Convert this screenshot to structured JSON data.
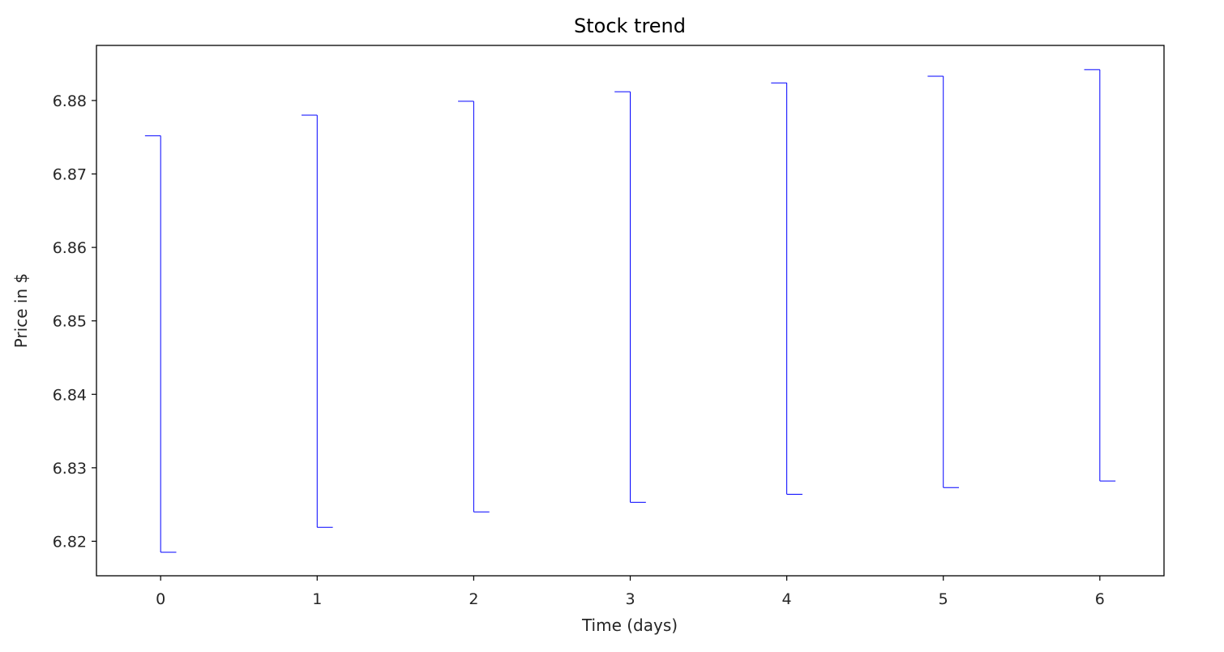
{
  "chart_data": {
    "type": "ohlc",
    "title": "Stock trend",
    "xlabel": "Time (days)",
    "ylabel": "Price in $",
    "x": [
      0,
      1,
      2,
      3,
      4,
      5,
      6
    ],
    "series": [
      {
        "open": [
          6.8752,
          6.878,
          6.8799,
          6.8812,
          6.8824,
          6.8833,
          6.8842
        ],
        "high": [
          6.8752,
          6.878,
          6.8799,
          6.8812,
          6.8824,
          6.8833,
          6.8842
        ],
        "low": [
          6.8185,
          6.8219,
          6.824,
          6.8253,
          6.8264,
          6.8273,
          6.8282
        ],
        "close": [
          6.8185,
          6.8219,
          6.824,
          6.8253,
          6.8264,
          6.8273,
          6.8282
        ]
      }
    ],
    "xticks": [
      0,
      1,
      2,
      3,
      4,
      5,
      6
    ],
    "yticks": [
      "6.82",
      "6.83",
      "6.84",
      "6.85",
      "6.86",
      "6.87",
      "6.88"
    ],
    "xlim": [
      -0.41,
      6.41
    ],
    "ylim": [
      6.8153,
      6.8875
    ],
    "color": "#0000ff",
    "grid": false
  }
}
